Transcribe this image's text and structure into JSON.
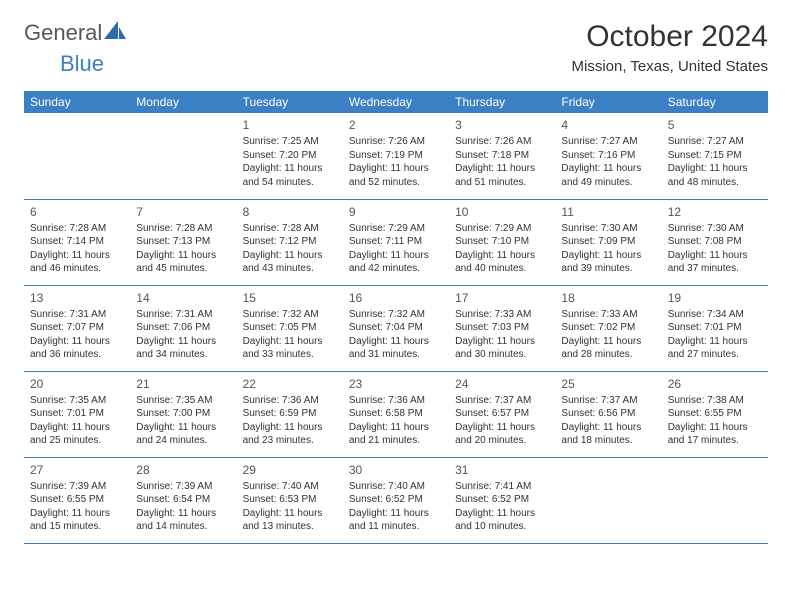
{
  "brand": {
    "text1": "General",
    "text2": "Blue"
  },
  "title": "October 2024",
  "location": "Mission, Texas, United States",
  "colors": {
    "header_bg": "#3b7fc4",
    "header_fg": "#ffffff",
    "rule": "#3b7fc4",
    "text": "#333333"
  },
  "dow": [
    "Sunday",
    "Monday",
    "Tuesday",
    "Wednesday",
    "Thursday",
    "Friday",
    "Saturday"
  ],
  "weeks": [
    [
      null,
      null,
      {
        "n": "1",
        "sr": "Sunrise: 7:25 AM",
        "ss": "Sunset: 7:20 PM",
        "dl": "Daylight: 11 hours and 54 minutes."
      },
      {
        "n": "2",
        "sr": "Sunrise: 7:26 AM",
        "ss": "Sunset: 7:19 PM",
        "dl": "Daylight: 11 hours and 52 minutes."
      },
      {
        "n": "3",
        "sr": "Sunrise: 7:26 AM",
        "ss": "Sunset: 7:18 PM",
        "dl": "Daylight: 11 hours and 51 minutes."
      },
      {
        "n": "4",
        "sr": "Sunrise: 7:27 AM",
        "ss": "Sunset: 7:16 PM",
        "dl": "Daylight: 11 hours and 49 minutes."
      },
      {
        "n": "5",
        "sr": "Sunrise: 7:27 AM",
        "ss": "Sunset: 7:15 PM",
        "dl": "Daylight: 11 hours and 48 minutes."
      }
    ],
    [
      {
        "n": "6",
        "sr": "Sunrise: 7:28 AM",
        "ss": "Sunset: 7:14 PM",
        "dl": "Daylight: 11 hours and 46 minutes."
      },
      {
        "n": "7",
        "sr": "Sunrise: 7:28 AM",
        "ss": "Sunset: 7:13 PM",
        "dl": "Daylight: 11 hours and 45 minutes."
      },
      {
        "n": "8",
        "sr": "Sunrise: 7:28 AM",
        "ss": "Sunset: 7:12 PM",
        "dl": "Daylight: 11 hours and 43 minutes."
      },
      {
        "n": "9",
        "sr": "Sunrise: 7:29 AM",
        "ss": "Sunset: 7:11 PM",
        "dl": "Daylight: 11 hours and 42 minutes."
      },
      {
        "n": "10",
        "sr": "Sunrise: 7:29 AM",
        "ss": "Sunset: 7:10 PM",
        "dl": "Daylight: 11 hours and 40 minutes."
      },
      {
        "n": "11",
        "sr": "Sunrise: 7:30 AM",
        "ss": "Sunset: 7:09 PM",
        "dl": "Daylight: 11 hours and 39 minutes."
      },
      {
        "n": "12",
        "sr": "Sunrise: 7:30 AM",
        "ss": "Sunset: 7:08 PM",
        "dl": "Daylight: 11 hours and 37 minutes."
      }
    ],
    [
      {
        "n": "13",
        "sr": "Sunrise: 7:31 AM",
        "ss": "Sunset: 7:07 PM",
        "dl": "Daylight: 11 hours and 36 minutes."
      },
      {
        "n": "14",
        "sr": "Sunrise: 7:31 AM",
        "ss": "Sunset: 7:06 PM",
        "dl": "Daylight: 11 hours and 34 minutes."
      },
      {
        "n": "15",
        "sr": "Sunrise: 7:32 AM",
        "ss": "Sunset: 7:05 PM",
        "dl": "Daylight: 11 hours and 33 minutes."
      },
      {
        "n": "16",
        "sr": "Sunrise: 7:32 AM",
        "ss": "Sunset: 7:04 PM",
        "dl": "Daylight: 11 hours and 31 minutes."
      },
      {
        "n": "17",
        "sr": "Sunrise: 7:33 AM",
        "ss": "Sunset: 7:03 PM",
        "dl": "Daylight: 11 hours and 30 minutes."
      },
      {
        "n": "18",
        "sr": "Sunrise: 7:33 AM",
        "ss": "Sunset: 7:02 PM",
        "dl": "Daylight: 11 hours and 28 minutes."
      },
      {
        "n": "19",
        "sr": "Sunrise: 7:34 AM",
        "ss": "Sunset: 7:01 PM",
        "dl": "Daylight: 11 hours and 27 minutes."
      }
    ],
    [
      {
        "n": "20",
        "sr": "Sunrise: 7:35 AM",
        "ss": "Sunset: 7:01 PM",
        "dl": "Daylight: 11 hours and 25 minutes."
      },
      {
        "n": "21",
        "sr": "Sunrise: 7:35 AM",
        "ss": "Sunset: 7:00 PM",
        "dl": "Daylight: 11 hours and 24 minutes."
      },
      {
        "n": "22",
        "sr": "Sunrise: 7:36 AM",
        "ss": "Sunset: 6:59 PM",
        "dl": "Daylight: 11 hours and 23 minutes."
      },
      {
        "n": "23",
        "sr": "Sunrise: 7:36 AM",
        "ss": "Sunset: 6:58 PM",
        "dl": "Daylight: 11 hours and 21 minutes."
      },
      {
        "n": "24",
        "sr": "Sunrise: 7:37 AM",
        "ss": "Sunset: 6:57 PM",
        "dl": "Daylight: 11 hours and 20 minutes."
      },
      {
        "n": "25",
        "sr": "Sunrise: 7:37 AM",
        "ss": "Sunset: 6:56 PM",
        "dl": "Daylight: 11 hours and 18 minutes."
      },
      {
        "n": "26",
        "sr": "Sunrise: 7:38 AM",
        "ss": "Sunset: 6:55 PM",
        "dl": "Daylight: 11 hours and 17 minutes."
      }
    ],
    [
      {
        "n": "27",
        "sr": "Sunrise: 7:39 AM",
        "ss": "Sunset: 6:55 PM",
        "dl": "Daylight: 11 hours and 15 minutes."
      },
      {
        "n": "28",
        "sr": "Sunrise: 7:39 AM",
        "ss": "Sunset: 6:54 PM",
        "dl": "Daylight: 11 hours and 14 minutes."
      },
      {
        "n": "29",
        "sr": "Sunrise: 7:40 AM",
        "ss": "Sunset: 6:53 PM",
        "dl": "Daylight: 11 hours and 13 minutes."
      },
      {
        "n": "30",
        "sr": "Sunrise: 7:40 AM",
        "ss": "Sunset: 6:52 PM",
        "dl": "Daylight: 11 hours and 11 minutes."
      },
      {
        "n": "31",
        "sr": "Sunrise: 7:41 AM",
        "ss": "Sunset: 6:52 PM",
        "dl": "Daylight: 11 hours and 10 minutes."
      },
      null,
      null
    ]
  ]
}
